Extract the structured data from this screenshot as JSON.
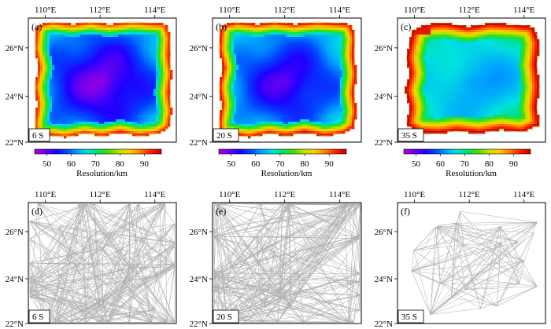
{
  "figure": {
    "colorbar_label": "Resolution/km",
    "colorbar_ticks": [
      "50",
      "60",
      "70",
      "80",
      "90"
    ],
    "colorbar_colors": [
      "#b400d6",
      "#6a00f0",
      "#1e00ff",
      "#0046ff",
      "#00a0ff",
      "#00e0e0",
      "#00e070",
      "#40e000",
      "#c0e000",
      "#ffd000",
      "#ff8000",
      "#ff2000",
      "#c00000"
    ],
    "line_color": "#a0a0a0",
    "lon_ticks": [
      "110°E",
      "112°E",
      "114°E"
    ],
    "lat_ticks": [
      "26°N",
      "24°N",
      "22°N"
    ]
  },
  "panels": [
    {
      "label": "(a)",
      "tag": "6 S",
      "type": "resolution",
      "mode": "a"
    },
    {
      "label": "(b)",
      "tag": "20 S",
      "type": "resolution",
      "mode": "b"
    },
    {
      "label": "(c)",
      "tag": "35 S",
      "type": "resolution",
      "mode": "c"
    },
    {
      "label": "(d)",
      "tag": "6 S",
      "type": "rays",
      "count": 420
    },
    {
      "label": "(e)",
      "tag": "20 S",
      "type": "rays",
      "count": 420
    },
    {
      "label": "(f)",
      "tag": "35 S",
      "type": "rays",
      "count": 160
    }
  ],
  "chart_data": [
    {
      "type": "heatmap",
      "title": "(a) 6 S",
      "xlabel": "",
      "ylabel": "",
      "x_ticks": [
        "110°E",
        "112°E",
        "114°E"
      ],
      "y_ticks": [
        "26°N",
        "24°N",
        "22°N"
      ],
      "colorbar": {
        "label": "Resolution/km",
        "range": [
          45,
          97
        ],
        "ticks": [
          50,
          60,
          70,
          80,
          90
        ]
      }
    },
    {
      "type": "heatmap",
      "title": "(b) 20 S",
      "xlabel": "",
      "ylabel": "",
      "x_ticks": [
        "110°E",
        "112°E",
        "114°E"
      ],
      "y_ticks": [
        "26°N",
        "24°N",
        "22°N"
      ],
      "colorbar": {
        "label": "Resolution/km",
        "range": [
          45,
          97
        ],
        "ticks": [
          50,
          60,
          70,
          80,
          90
        ]
      }
    },
    {
      "type": "heatmap",
      "title": "(c) 35 S",
      "xlabel": "",
      "ylabel": "",
      "x_ticks": [
        "110°E",
        "112°E",
        "114°E"
      ],
      "y_ticks": [
        "26°N",
        "24°N",
        "22°N"
      ],
      "colorbar": {
        "label": "Resolution/km",
        "range": [
          45,
          97
        ],
        "ticks": [
          50,
          60,
          70,
          80,
          90
        ]
      }
    },
    {
      "type": "other",
      "title": "(d) 6 S",
      "x_ticks": [
        "110°E",
        "112°E",
        "114°E"
      ],
      "y_ticks": [
        "26°N",
        "24°N",
        "22°N"
      ]
    },
    {
      "type": "other",
      "title": "(e) 20 S",
      "x_ticks": [
        "110°E",
        "112°E",
        "114°E"
      ],
      "y_ticks": [
        "26°N",
        "24°N",
        "22°N"
      ]
    },
    {
      "type": "other",
      "title": "(f) 35 S",
      "x_ticks": [
        "110°E",
        "112°E",
        "114°E"
      ],
      "y_ticks": [
        "26°N",
        "24°N",
        "22°N"
      ]
    }
  ]
}
